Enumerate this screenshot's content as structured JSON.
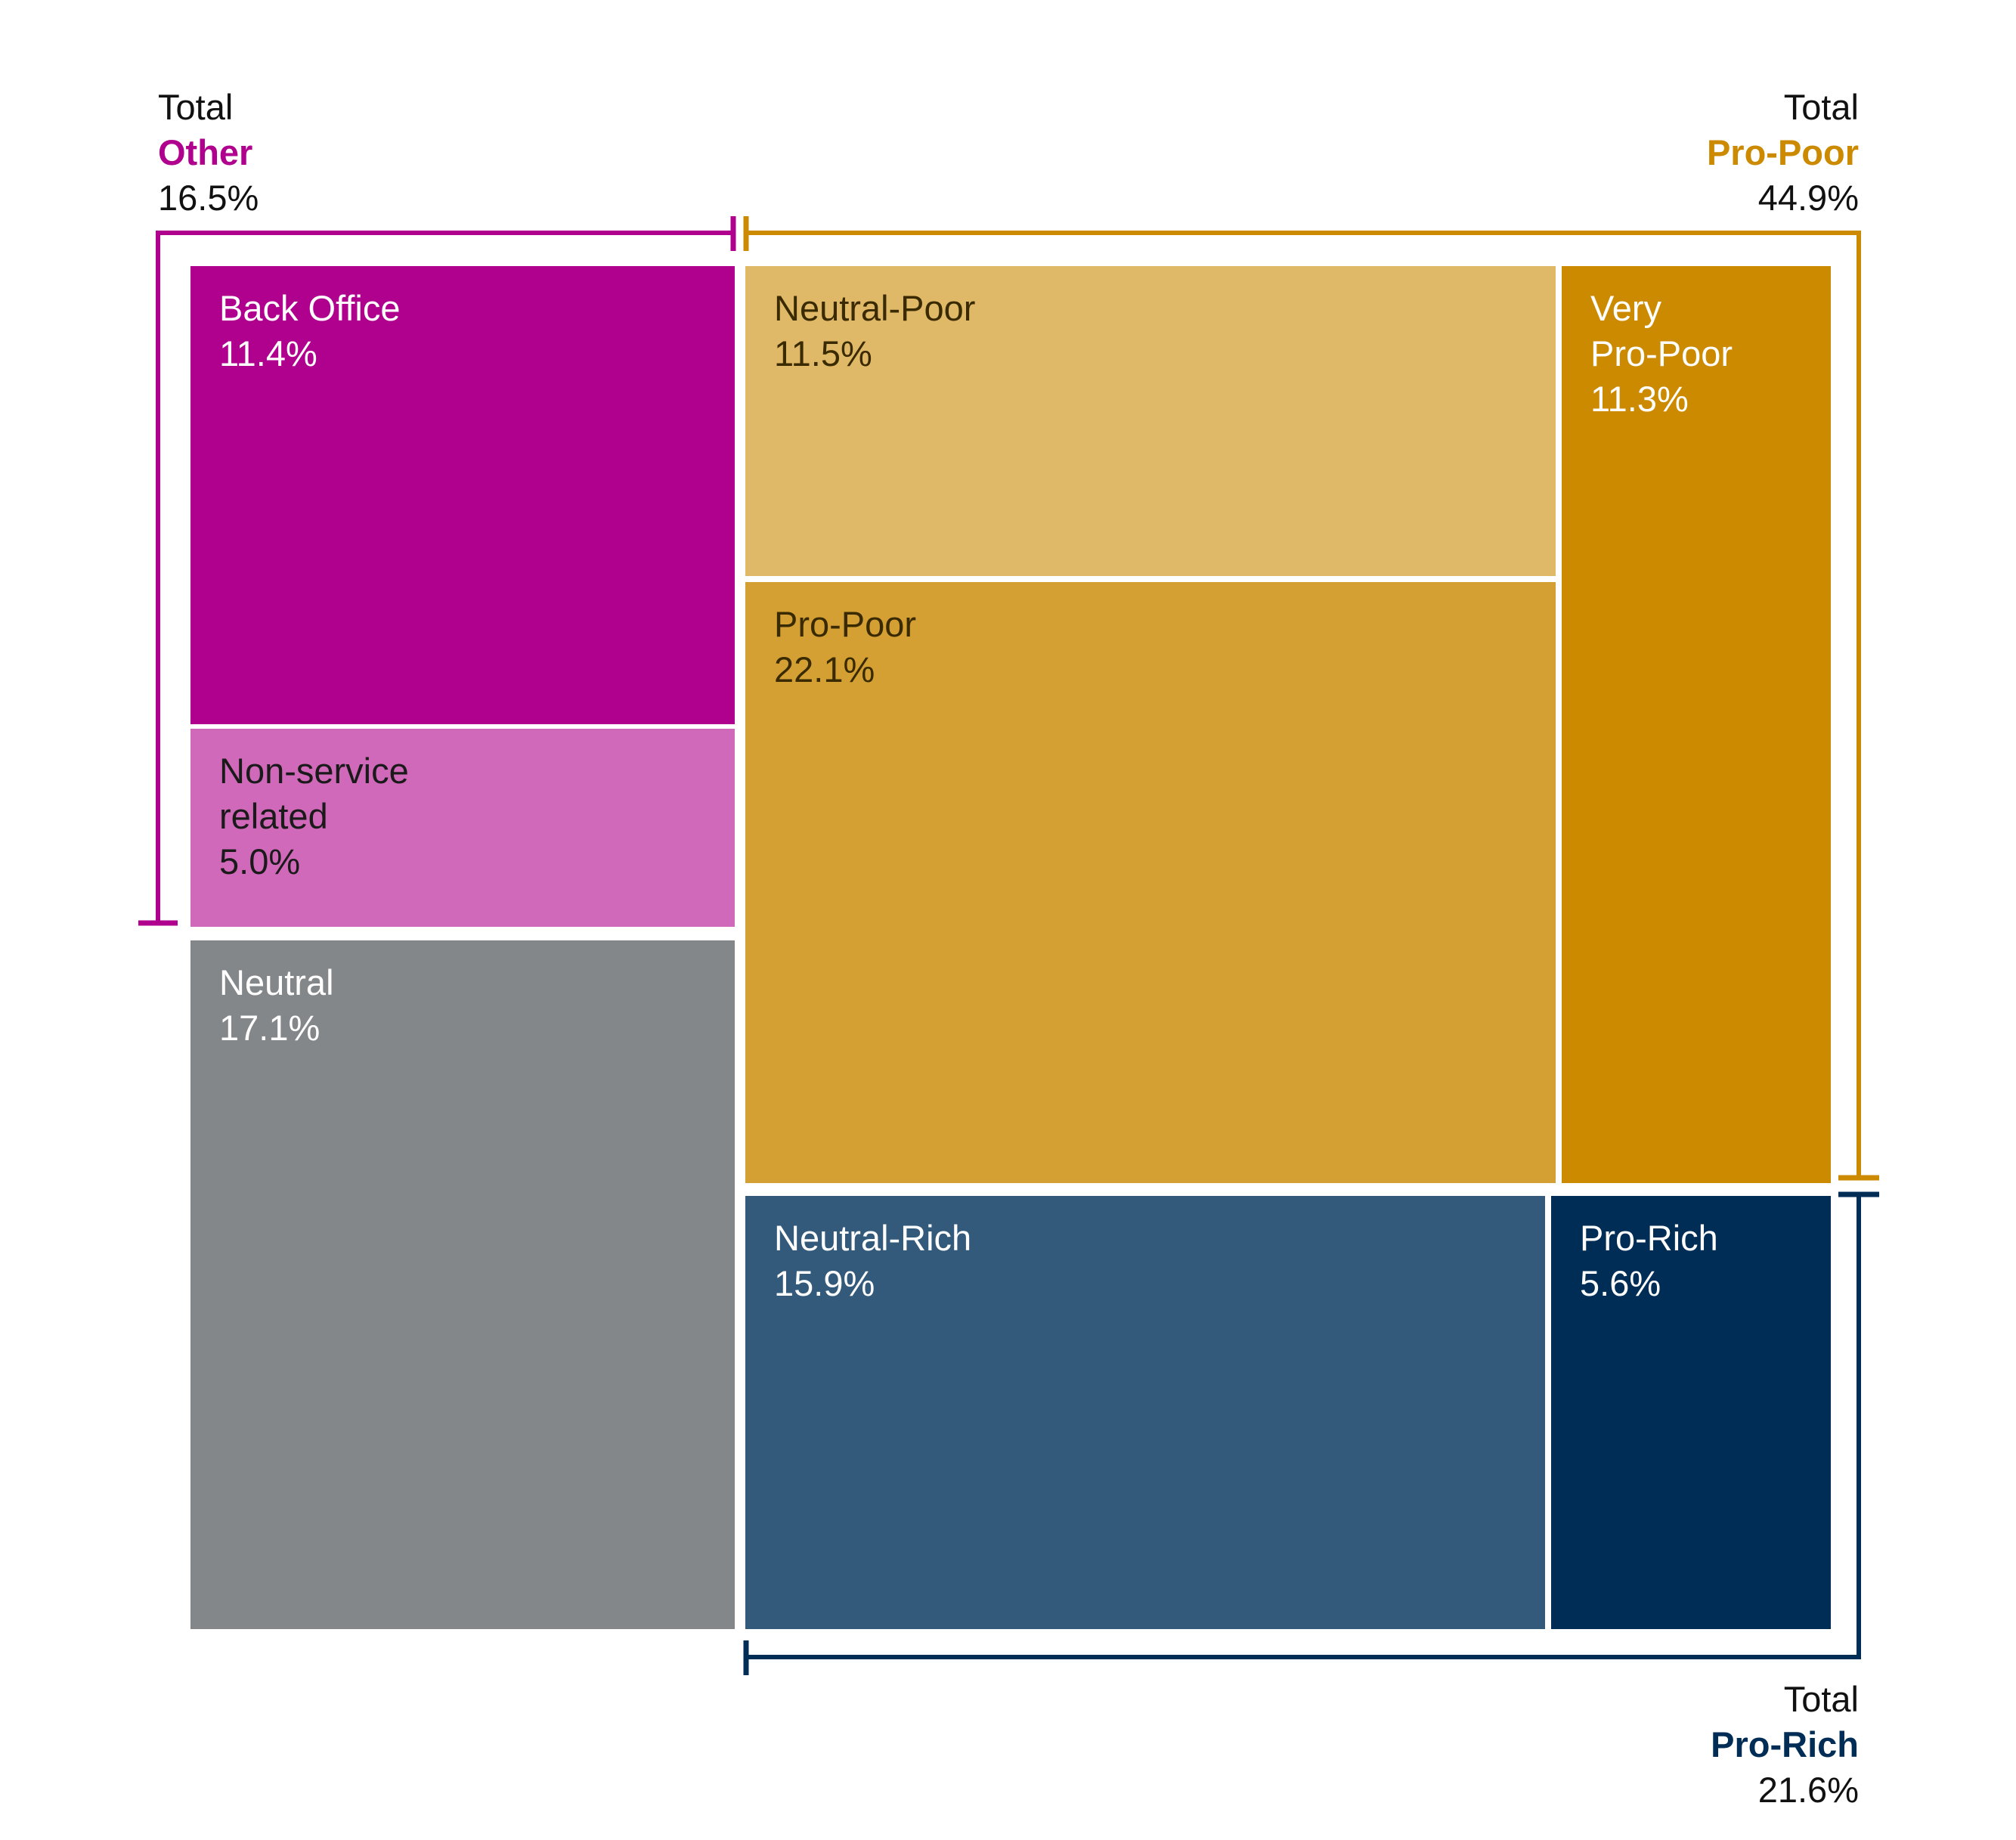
{
  "colors": {
    "other": "#b0008e",
    "pro_poor": "#cc8a00",
    "pro_rich": "#002d55"
  },
  "totals": {
    "other": {
      "prefix": "Total",
      "name": "Other",
      "value": "16.5%"
    },
    "pro_poor": {
      "prefix": "Total",
      "name": "Pro-Poor",
      "value": "44.9%"
    },
    "pro_rich": {
      "prefix": "Total",
      "name": "Pro-Rich",
      "value": "21.6%"
    }
  },
  "chart_data": {
    "type": "treemap",
    "groups": [
      {
        "name": "Other",
        "total": 16.5,
        "color": "#b0008e"
      },
      {
        "name": "Pro-Poor",
        "total": 44.9,
        "color": "#cc8a00"
      },
      {
        "name": "Pro-Rich",
        "total": 21.6,
        "color": "#002d55"
      }
    ],
    "tiles": [
      {
        "label": "Back Office",
        "value": 11.4,
        "text": "11.4%",
        "group": "Other",
        "color": "#b0008e",
        "text_color": "#ffffff"
      },
      {
        "label": "Non-service\nrelated",
        "value": 5.0,
        "text": "5.0%",
        "group": "Other",
        "color": "#d069b9",
        "text_color": "#1a1a1a"
      },
      {
        "label": "Neutral",
        "value": 17.1,
        "text": "17.1%",
        "group": "",
        "color": "#83878a",
        "text_color": "#ffffff"
      },
      {
        "label": "Neutral-Poor",
        "value": 11.5,
        "text": "11.5%",
        "group": "Pro-Poor",
        "color": "#e0b968",
        "text_color": "#3a2a00"
      },
      {
        "label": "Pro-Poor",
        "value": 22.1,
        "text": "22.1%",
        "group": "Pro-Poor",
        "color": "#d4a033",
        "text_color": "#3a2a00"
      },
      {
        "label": "Very\nPro-Poor",
        "value": 11.3,
        "text": "11.3%",
        "group": "Pro-Poor",
        "color": "#cc8a00",
        "text_color": "#ffffff"
      },
      {
        "label": "Neutral-Rich",
        "value": 15.9,
        "text": "15.9%",
        "group": "Pro-Rich",
        "color": "#335a7b",
        "text_color": "#ffffff"
      },
      {
        "label": "Pro-Rich",
        "value": 5.6,
        "text": "5.6%",
        "group": "Pro-Rich",
        "color": "#002d55",
        "text_color": "#ffffff"
      }
    ]
  }
}
